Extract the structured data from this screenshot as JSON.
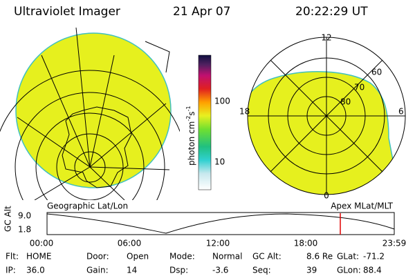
{
  "header": {
    "title": "Ultraviolet Imager",
    "date": "21 Apr 07",
    "time": "20:22:29 UT"
  },
  "colorbar": {
    "labels": [
      "100",
      "10"
    ],
    "unit": {
      "base": "photon cm",
      "exp1": "-2",
      "mid": "s",
      "exp2": "-1"
    }
  },
  "left_panel": {
    "caption": "Geographic Lat/Lon"
  },
  "right_panel": {
    "caption": "Apex MLat/MLT",
    "mlt_labels": [
      "12",
      "18",
      "6",
      "0"
    ],
    "mlat_labels": [
      "60",
      "70",
      "80"
    ]
  },
  "altitude_strip": {
    "axis_label": "GC Alt",
    "ticks": [
      "9.0",
      "1.8"
    ],
    "times": [
      "00:00",
      "06:00",
      "12:00",
      "18:00",
      "23:59"
    ]
  },
  "footer": {
    "rows": [
      [
        {
          "label": "Flt:",
          "value": "HOME"
        },
        {
          "label": "Door:",
          "value": "Open"
        },
        {
          "label": "Mode:",
          "value": "Normal"
        },
        {
          "label": "GC Alt:",
          "value": "8.6 Re"
        },
        {
          "label": "GLat:",
          "value": "-71.2"
        }
      ],
      [
        {
          "label": "IP:",
          "value": "36.0"
        },
        {
          "label": "Gain:",
          "value": "14"
        },
        {
          "label": "Dsp:",
          "value": "-3.6"
        },
        {
          "label": "Seq:",
          "value": "39"
        },
        {
          "label": "GLon:",
          "value": "88.4"
        }
      ]
    ]
  }
}
